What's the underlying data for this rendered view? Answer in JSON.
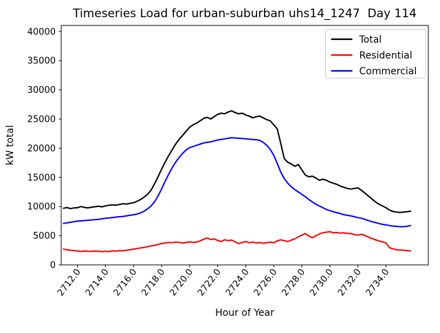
{
  "figure": {
    "background": "#ffffff",
    "axes_edge_color": "#000000",
    "legend_border_color": "#cccccc"
  },
  "chart_data": {
    "type": "line",
    "title": "Timeseries Load for urban-suburban uhs14_1247  Day 114",
    "xlabel": "Hour of Year",
    "ylabel": "kW total",
    "xlim": [
      2710.84,
      2737.02
    ],
    "ylim": [
      0,
      41040
    ],
    "grid": false,
    "x_ticks": [
      2712,
      2714,
      2716,
      2718,
      2720,
      2722,
      2724,
      2726,
      2728,
      2730,
      2732,
      2734
    ],
    "x_tick_labels": [
      "2712.0",
      "2714.0",
      "2716.0",
      "2718.0",
      "2720.0",
      "2722.0",
      "2724.0",
      "2726.0",
      "2728.0",
      "2730.0",
      "2732.0",
      "2734.0"
    ],
    "y_ticks": [
      0,
      5000,
      10000,
      15000,
      20000,
      25000,
      30000,
      35000,
      40000
    ],
    "y_tick_labels": [
      "0",
      "5000",
      "10000",
      "15000",
      "20000",
      "25000",
      "30000",
      "35000",
      "40000"
    ],
    "legend": {
      "position": "upper right",
      "entries": [
        "Total",
        "Residential",
        "Commercial"
      ]
    },
    "x": [
      2711.0,
      2711.25,
      2711.5,
      2711.75,
      2712.0,
      2712.25,
      2712.5,
      2712.75,
      2713.0,
      2713.25,
      2713.5,
      2713.75,
      2714.0,
      2714.25,
      2714.5,
      2714.75,
      2715.0,
      2715.25,
      2715.5,
      2715.75,
      2716.0,
      2716.25,
      2716.5,
      2716.75,
      2717.0,
      2717.25,
      2717.5,
      2717.75,
      2718.0,
      2718.25,
      2718.5,
      2718.75,
      2719.0,
      2719.25,
      2719.5,
      2719.75,
      2720.0,
      2720.25,
      2720.5,
      2720.75,
      2721.0,
      2721.25,
      2721.5,
      2721.75,
      2722.0,
      2722.25,
      2722.5,
      2722.75,
      2723.0,
      2723.25,
      2723.5,
      2723.75,
      2724.0,
      2724.25,
      2724.5,
      2724.75,
      2725.0,
      2725.25,
      2725.5,
      2725.75,
      2726.0,
      2726.25,
      2726.5,
      2726.75,
      2727.0,
      2727.25,
      2727.5,
      2727.75,
      2728.0,
      2728.25,
      2728.5,
      2728.75,
      2729.0,
      2729.25,
      2729.5,
      2729.75,
      2730.0,
      2730.25,
      2730.5,
      2730.75,
      2731.0,
      2731.25,
      2731.5,
      2731.75,
      2732.0,
      2732.25,
      2732.5,
      2732.75,
      2733.0,
      2733.25,
      2733.5,
      2733.75,
      2734.0,
      2734.25,
      2734.5,
      2734.75,
      2735.0,
      2735.25,
      2735.5,
      2735.75
    ],
    "series": [
      {
        "name": "Total",
        "color": "#000000",
        "values": [
          9700,
          9820,
          9650,
          9760,
          9800,
          10000,
          9850,
          9780,
          9900,
          9960,
          10050,
          9950,
          10120,
          10220,
          10300,
          10240,
          10350,
          10480,
          10420,
          10560,
          10650,
          10900,
          11200,
          11600,
          12100,
          12800,
          13900,
          15100,
          16400,
          17600,
          18700,
          19700,
          20700,
          21500,
          22200,
          22900,
          23600,
          24000,
          24300,
          24700,
          25100,
          25300,
          25000,
          25400,
          25800,
          26000,
          25900,
          26200,
          26400,
          26100,
          25900,
          26000,
          25700,
          25500,
          25200,
          25400,
          25500,
          25200,
          24900,
          24700,
          24000,
          23300,
          20800,
          18200,
          17600,
          17300,
          16900,
          17200,
          16300,
          15400,
          15100,
          15200,
          14900,
          14500,
          14700,
          14500,
          14200,
          14000,
          13800,
          13500,
          13300,
          13100,
          13000,
          13100,
          13200,
          12800,
          12300,
          11800,
          11300,
          10800,
          10400,
          10100,
          9800,
          9400,
          9150,
          9050,
          9000,
          9050,
          9100,
          9200
        ]
      },
      {
        "name": "Residential",
        "color": "#ff0000",
        "values": [
          2700,
          2600,
          2500,
          2450,
          2400,
          2300,
          2380,
          2320,
          2300,
          2380,
          2340,
          2280,
          2320,
          2280,
          2400,
          2360,
          2450,
          2420,
          2500,
          2600,
          2700,
          2800,
          2900,
          3000,
          3100,
          3250,
          3350,
          3500,
          3650,
          3750,
          3850,
          3800,
          3900,
          3850,
          3750,
          3850,
          3950,
          3850,
          3900,
          4100,
          4400,
          4600,
          4350,
          4450,
          4200,
          4000,
          4300,
          4150,
          4250,
          3950,
          3650,
          3850,
          4000,
          3800,
          3900,
          3750,
          3850,
          3700,
          3800,
          3900,
          3800,
          4100,
          4300,
          4150,
          4000,
          4250,
          4450,
          4800,
          5100,
          5350,
          4950,
          4650,
          5000,
          5300,
          5500,
          5600,
          5700,
          5500,
          5550,
          5450,
          5500,
          5400,
          5350,
          5200,
          5100,
          5250,
          5050,
          4750,
          4500,
          4300,
          4100,
          3950,
          3750,
          2950,
          2750,
          2600,
          2550,
          2500,
          2450,
          2400
        ]
      },
      {
        "name": "Commercial",
        "color": "#0000ff",
        "values": [
          7100,
          7200,
          7300,
          7400,
          7500,
          7550,
          7600,
          7650,
          7700,
          7750,
          7800,
          7900,
          8000,
          8050,
          8100,
          8200,
          8250,
          8300,
          8400,
          8500,
          8600,
          8700,
          8900,
          9200,
          9600,
          10100,
          10800,
          11800,
          13000,
          14300,
          15500,
          16600,
          17600,
          18400,
          19100,
          19700,
          20100,
          20300,
          20500,
          20700,
          20900,
          21000,
          21100,
          21250,
          21400,
          21500,
          21600,
          21700,
          21800,
          21750,
          21700,
          21650,
          21600,
          21550,
          21500,
          21450,
          21350,
          21000,
          20500,
          19800,
          18800,
          17400,
          15900,
          14800,
          14000,
          13400,
          12900,
          12500,
          12100,
          11700,
          11200,
          10800,
          10400,
          10100,
          9800,
          9500,
          9300,
          9100,
          8950,
          8800,
          8600,
          8500,
          8400,
          8250,
          8100,
          8000,
          7800,
          7600,
          7400,
          7250,
          7100,
          6950,
          6850,
          6750,
          6650,
          6600,
          6550,
          6550,
          6600,
          6750
        ]
      }
    ]
  }
}
